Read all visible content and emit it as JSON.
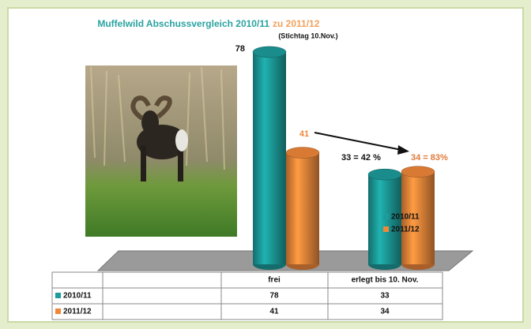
{
  "chart_data": {
    "type": "bar",
    "title": "Muffelwild Abschussvergleich 2010/11",
    "title_suffix": "zu 2011/12",
    "subtitle": "(Stichtag 10.Nov.)",
    "categories": [
      "frei",
      "erlegt bis 10. Nov."
    ],
    "series": [
      {
        "name": "2010/11",
        "color": "#1c9c9a",
        "values": [
          78,
          33
        ],
        "value_labels": [
          "78",
          "33 = 42 %"
        ]
      },
      {
        "name": "2011/12",
        "color": "#f0883a",
        "values": [
          41,
          34
        ],
        "value_labels": [
          "41",
          "34 = 83%"
        ]
      }
    ]
  }
}
